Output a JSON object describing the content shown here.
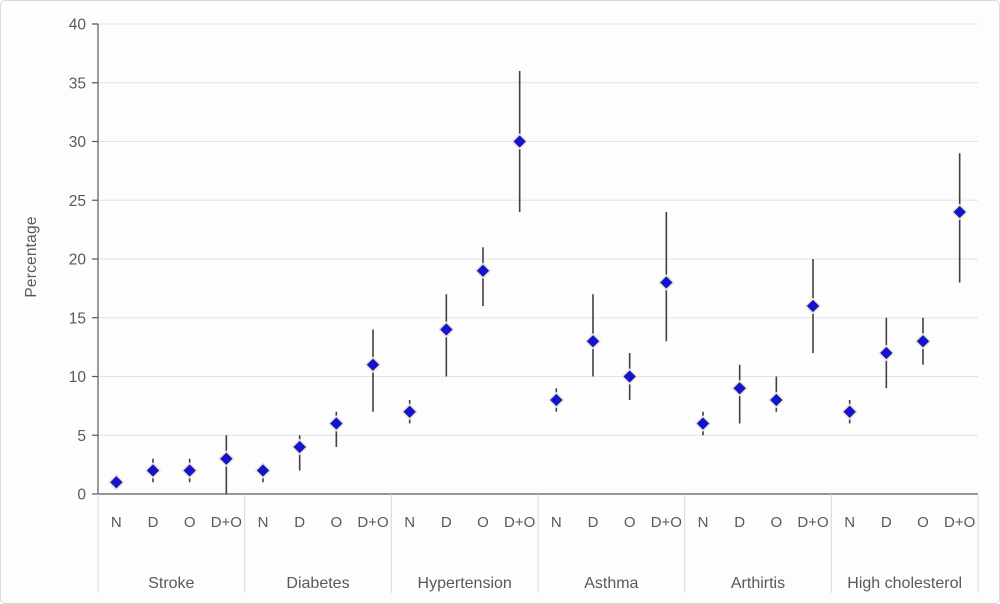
{
  "chart_data": {
    "type": "scatter",
    "title": "",
    "ylabel": "Percentage",
    "xlabel": "",
    "ylim": [
      0,
      40
    ],
    "yticks": [
      0,
      5,
      10,
      15,
      20,
      25,
      30,
      35,
      40
    ],
    "grid": true,
    "legend": "none",
    "marker": "diamond",
    "point_labels": [
      "N",
      "D",
      "O",
      "D+O"
    ],
    "colors": {
      "marker": "#1414c8",
      "marker_outline": "#e9e3d5",
      "error": "#404040",
      "grid": "#e2e2e8",
      "axis": "#595959",
      "separator": "#d9d9d9",
      "text": "#595959",
      "background": "#fdfdfd"
    },
    "groups": [
      {
        "label": "Stroke",
        "points": [
          {
            "category": "N",
            "value": 1,
            "low": 0.5,
            "high": 1.5
          },
          {
            "category": "D",
            "value": 2,
            "low": 1,
            "high": 3
          },
          {
            "category": "O",
            "value": 2,
            "low": 1,
            "high": 3
          },
          {
            "category": "D+O",
            "value": 3,
            "low": 0,
            "high": 5
          }
        ]
      },
      {
        "label": "Diabetes",
        "points": [
          {
            "category": "N",
            "value": 2,
            "low": 1,
            "high": 2.5
          },
          {
            "category": "D",
            "value": 4,
            "low": 2,
            "high": 5
          },
          {
            "category": "O",
            "value": 6,
            "low": 4,
            "high": 7
          },
          {
            "category": "D+O",
            "value": 11,
            "low": 7,
            "high": 14
          }
        ]
      },
      {
        "label": "Hypertension",
        "points": [
          {
            "category": "N",
            "value": 7,
            "low": 6,
            "high": 8
          },
          {
            "category": "D",
            "value": 14,
            "low": 10,
            "high": 17
          },
          {
            "category": "O",
            "value": 19,
            "low": 16,
            "high": 21
          },
          {
            "category": "D+O",
            "value": 30,
            "low": 24,
            "high": 36
          }
        ]
      },
      {
        "label": "Asthma",
        "points": [
          {
            "category": "N",
            "value": 8,
            "low": 7,
            "high": 9
          },
          {
            "category": "D",
            "value": 13,
            "low": 10,
            "high": 17
          },
          {
            "category": "O",
            "value": 10,
            "low": 8,
            "high": 12
          },
          {
            "category": "D+O",
            "value": 18,
            "low": 13,
            "high": 24
          }
        ]
      },
      {
        "label": "Arthirtis",
        "points": [
          {
            "category": "N",
            "value": 6,
            "low": 5,
            "high": 7
          },
          {
            "category": "D",
            "value": 9,
            "low": 6,
            "high": 11
          },
          {
            "category": "O",
            "value": 8,
            "low": 7,
            "high": 10
          },
          {
            "category": "D+O",
            "value": 16,
            "low": 12,
            "high": 20
          }
        ]
      },
      {
        "label": "High cholesterol",
        "points": [
          {
            "category": "N",
            "value": 7,
            "low": 6,
            "high": 8
          },
          {
            "category": "D",
            "value": 12,
            "low": 9,
            "high": 15
          },
          {
            "category": "O",
            "value": 13,
            "low": 11,
            "high": 15
          },
          {
            "category": "D+O",
            "value": 24,
            "low": 18,
            "high": 29
          }
        ]
      }
    ]
  }
}
